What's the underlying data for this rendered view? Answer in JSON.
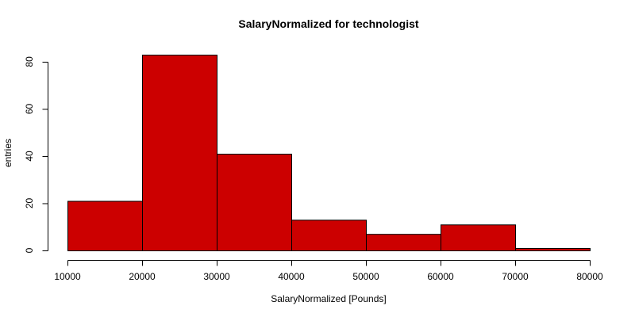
{
  "chart_data": {
    "type": "bar",
    "title": "SalaryNormalized for technologist",
    "xlabel": "SalaryNormalized [Pounds]",
    "ylabel": "entries",
    "bin_edges": [
      10000,
      20000,
      30000,
      40000,
      50000,
      60000,
      70000,
      80000
    ],
    "values": [
      21,
      83,
      41,
      13,
      7,
      11,
      1
    ],
    "xlim": [
      10000,
      80000
    ],
    "ylim": [
      0,
      83
    ],
    "x_ticks": [
      "10000",
      "20000",
      "30000",
      "40000",
      "50000",
      "60000",
      "70000",
      "80000"
    ],
    "y_ticks": [
      "0",
      "20",
      "40",
      "60",
      "80"
    ],
    "bar_color": "#cc0000",
    "grid": false
  }
}
